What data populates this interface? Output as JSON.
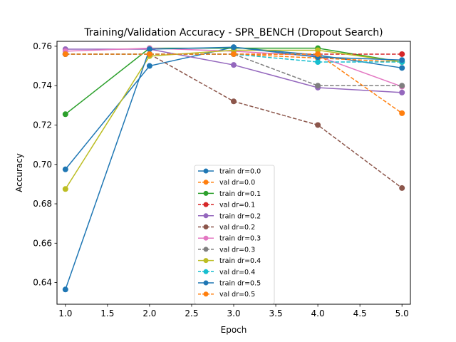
{
  "chart_data": {
    "type": "line",
    "title": "Training/Validation Accuracy - SPR_BENCH (Dropout Search)",
    "xlabel": "Epoch",
    "ylabel": "Accuracy",
    "xlim": [
      0.9,
      5.1
    ],
    "ylim": [
      0.629,
      0.7625
    ],
    "xticks": [
      1.0,
      1.5,
      2.0,
      2.5,
      3.0,
      3.5,
      4.0,
      4.5,
      5.0
    ],
    "xtick_labels": [
      "1.0",
      "1.5",
      "2.0",
      "2.5",
      "3.0",
      "3.5",
      "4.0",
      "4.5",
      "5.0"
    ],
    "yticks": [
      0.64,
      0.66,
      0.68,
      0.7,
      0.72,
      0.74,
      0.76
    ],
    "ytick_labels": [
      "0.64",
      "0.66",
      "0.68",
      "0.70",
      "0.72",
      "0.74",
      "0.76"
    ],
    "grid": false,
    "legend_position": "lower-center",
    "x": [
      1,
      2,
      3,
      4,
      5
    ],
    "series": [
      {
        "name": "train dr=0.0",
        "style": "solid",
        "color": "#1f77b4",
        "values": [
          0.6975,
          0.75,
          0.7595,
          0.7555,
          0.749
        ]
      },
      {
        "name": "val dr=0.0",
        "style": "dashed",
        "color": "#ff7f0e",
        "values": [
          0.756,
          0.756,
          0.756,
          0.754,
          0.752
        ]
      },
      {
        "name": "train dr=0.1",
        "style": "solid",
        "color": "#2ca02c",
        "values": [
          0.7255,
          0.759,
          0.759,
          0.759,
          0.752
        ]
      },
      {
        "name": "val dr=0.1",
        "style": "dashed",
        "color": "#d62728",
        "values": [
          0.756,
          0.756,
          0.756,
          0.756,
          0.756
        ]
      },
      {
        "name": "train dr=0.2",
        "style": "solid",
        "color": "#9467bd",
        "values": [
          0.7585,
          0.7585,
          0.7505,
          0.739,
          0.7365
        ]
      },
      {
        "name": "val dr=0.2",
        "style": "dashed",
        "color": "#8c564b",
        "values": [
          0.756,
          0.756,
          0.732,
          0.72,
          0.688
        ]
      },
      {
        "name": "train dr=0.3",
        "style": "solid",
        "color": "#e377c2",
        "values": [
          0.7575,
          0.759,
          0.7575,
          0.755,
          0.7395
        ]
      },
      {
        "name": "val dr=0.3",
        "style": "dashed",
        "color": "#7f7f7f",
        "values": [
          0.756,
          0.756,
          0.756,
          0.74,
          0.74
        ]
      },
      {
        "name": "train dr=0.4",
        "style": "solid",
        "color": "#bcbd22",
        "values": [
          0.6875,
          0.755,
          0.758,
          0.758,
          0.752
        ]
      },
      {
        "name": "val dr=0.4",
        "style": "dashed",
        "color": "#17becf",
        "values": [
          0.756,
          0.756,
          0.756,
          0.752,
          0.752
        ]
      },
      {
        "name": "train dr=0.5",
        "style": "solid",
        "color": "#1f77b4",
        "values": [
          0.6365,
          0.7585,
          0.7595,
          0.7545,
          0.753
        ]
      },
      {
        "name": "val dr=0.5",
        "style": "dashed",
        "color": "#ff7f0e",
        "values": [
          0.756,
          0.756,
          0.756,
          0.756,
          0.726
        ]
      }
    ]
  }
}
